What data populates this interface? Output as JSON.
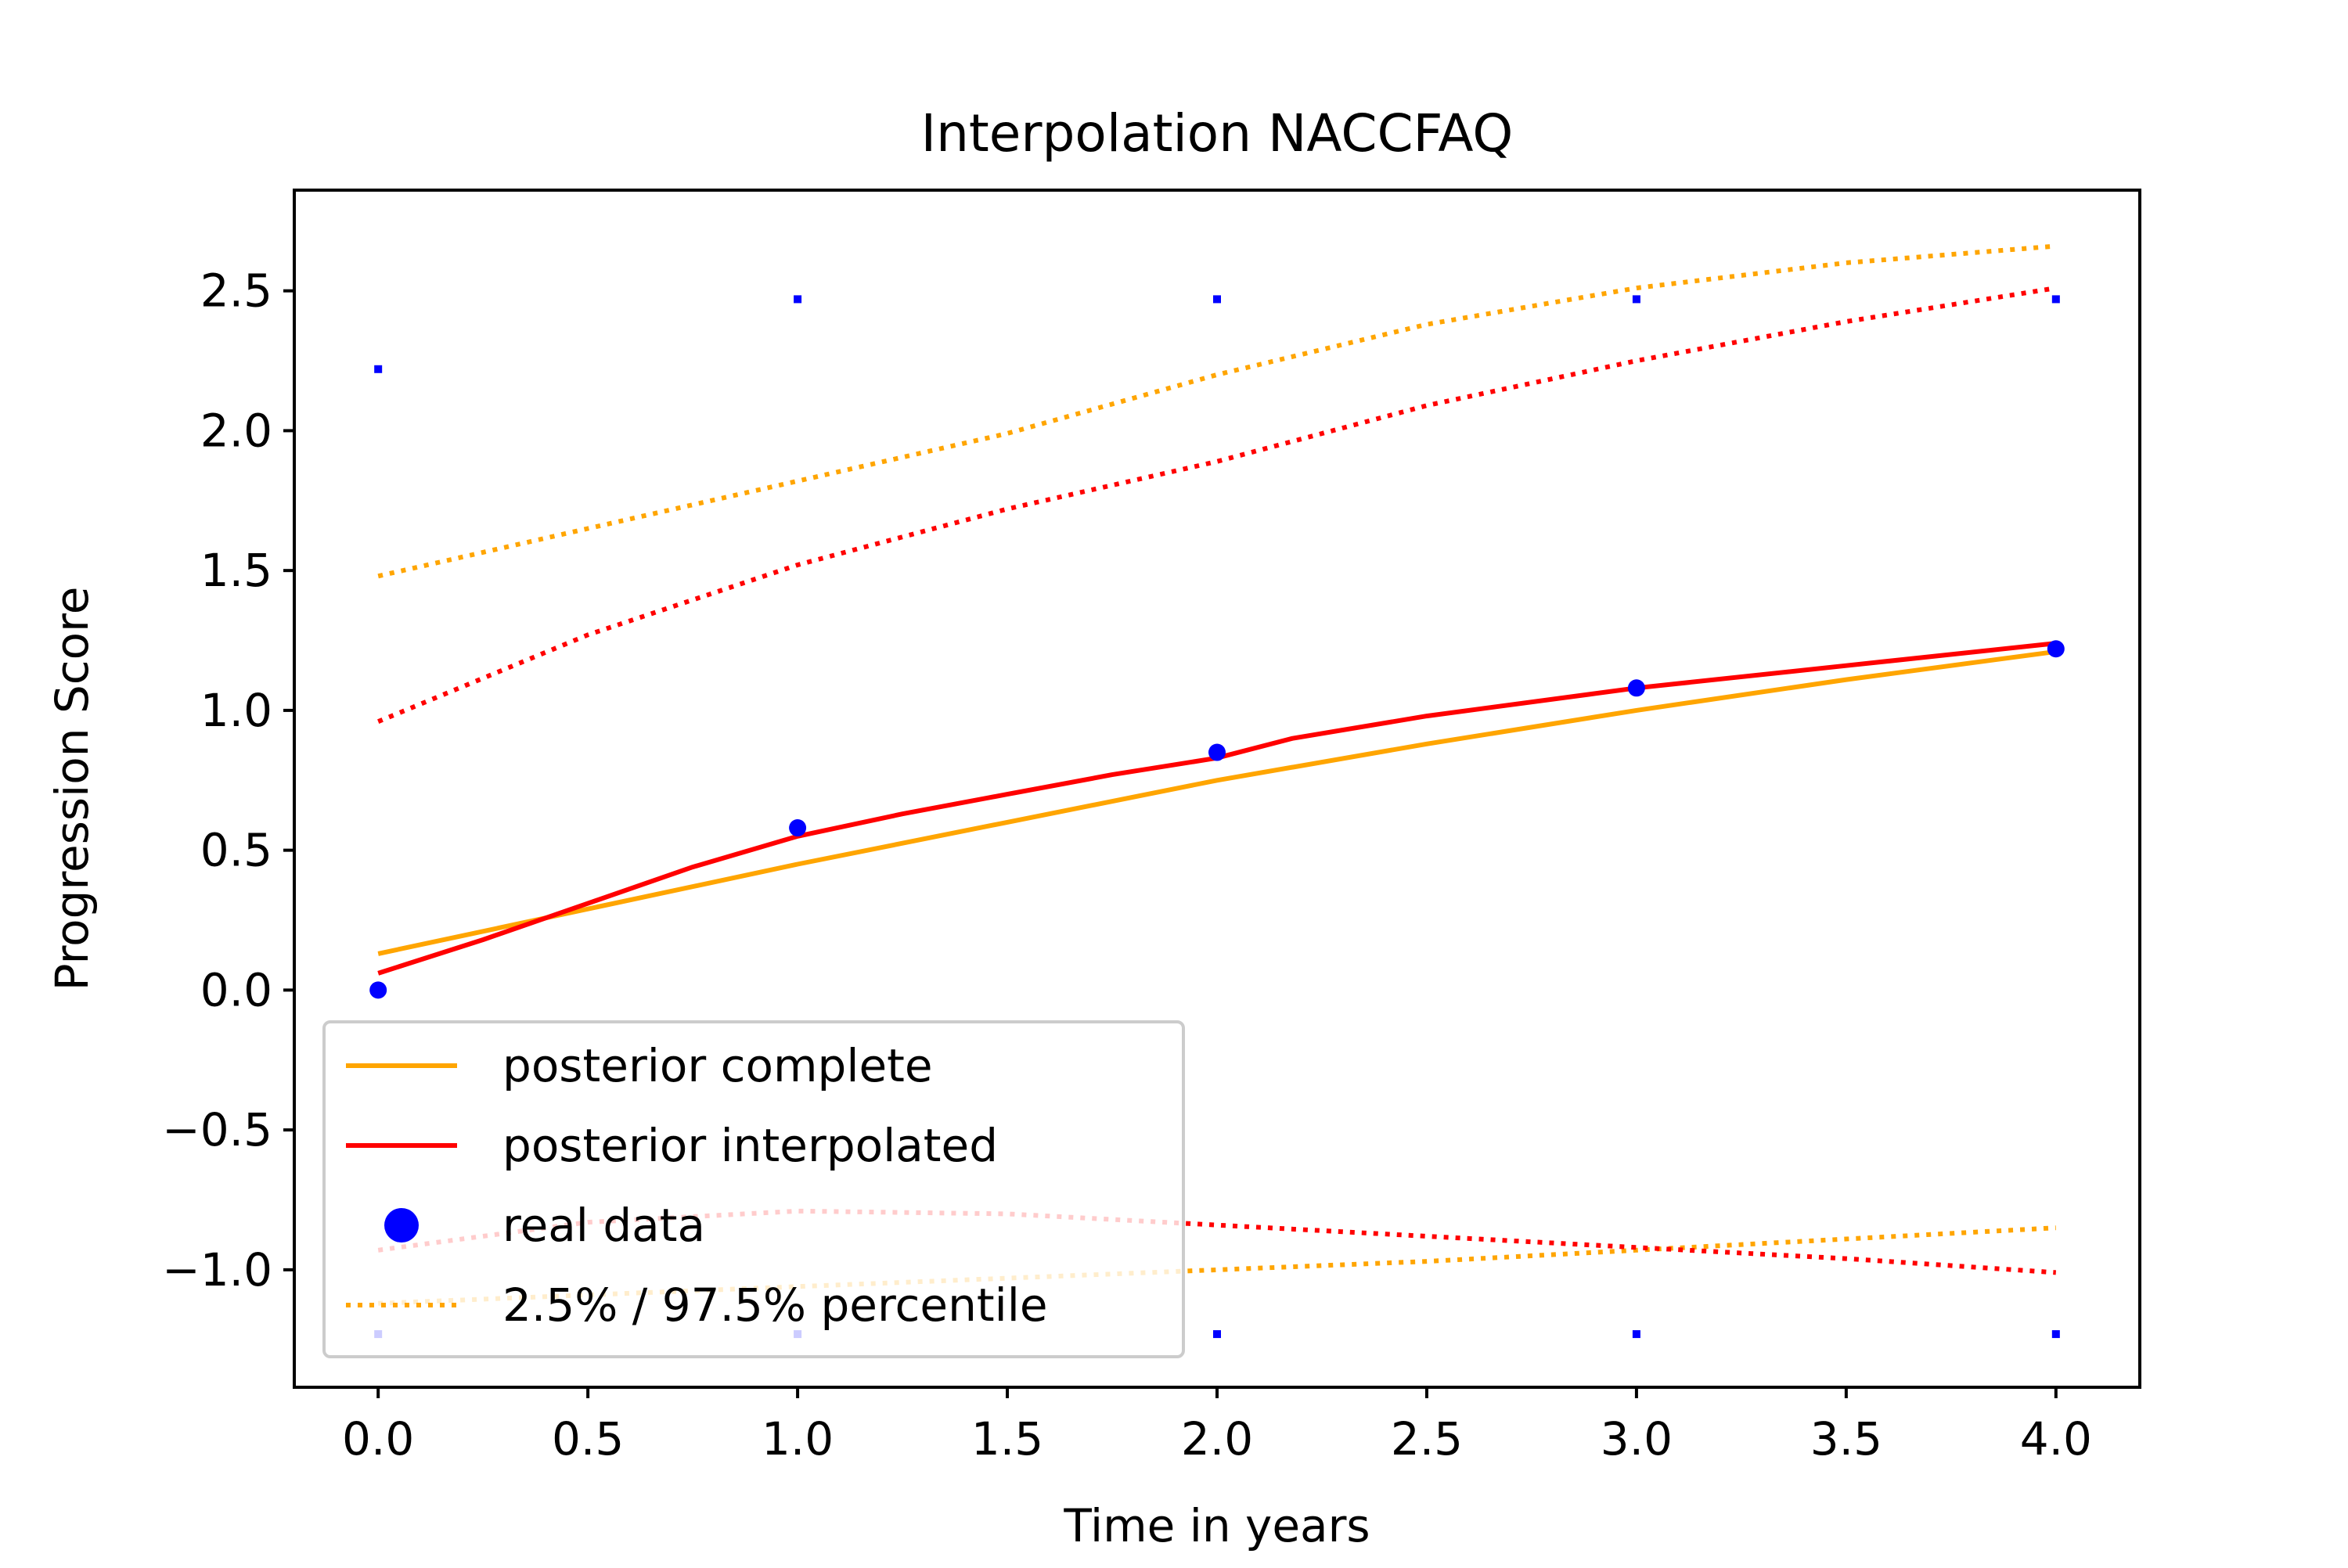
{
  "chart_data": {
    "type": "line",
    "title": "Interpolation NACCFAQ",
    "xlabel": "Time in years",
    "ylabel": "Progression Score",
    "xlim": [
      -0.2,
      4.2
    ],
    "ylim": [
      -1.42,
      2.86
    ],
    "xticks": [
      0.0,
      0.5,
      1.0,
      1.5,
      2.0,
      2.5,
      3.0,
      3.5,
      4.0
    ],
    "xtick_labels": [
      "0.0",
      "0.5",
      "1.0",
      "1.5",
      "2.0",
      "2.5",
      "3.0",
      "3.5",
      "4.0"
    ],
    "yticks": [
      -1.0,
      -0.5,
      0.0,
      0.5,
      1.0,
      1.5,
      2.0,
      2.5
    ],
    "ytick_labels": [
      "−1.0",
      "−0.5",
      "0.0",
      "0.5",
      "1.0",
      "1.5",
      "2.0",
      "2.5"
    ],
    "grid": false,
    "legend_position": "lower-left",
    "series": [
      {
        "name": "posterior complete",
        "style": "solid",
        "color": "#FFA500",
        "x": [
          0,
          0.5,
          1.0,
          1.5,
          2.0,
          2.5,
          3.0,
          3.5,
          4.0
        ],
        "y": [
          0.13,
          0.29,
          0.45,
          0.6,
          0.75,
          0.88,
          1.0,
          1.11,
          1.21
        ]
      },
      {
        "name": "posterior interpolated",
        "style": "solid",
        "color": "#FF0000",
        "x": [
          0,
          0.25,
          0.5,
          0.75,
          1.0,
          1.25,
          1.5,
          1.75,
          2.0,
          2.18,
          2.5,
          3.0,
          3.5,
          4.0
        ],
        "y": [
          0.06,
          0.18,
          0.31,
          0.44,
          0.55,
          0.63,
          0.7,
          0.77,
          0.83,
          0.9,
          0.98,
          1.08,
          1.16,
          1.24
        ]
      },
      {
        "name": "real data",
        "style": "markers",
        "color": "#0000FF",
        "x": [
          0,
          1,
          2,
          3,
          4
        ],
        "y": [
          0.0,
          0.58,
          0.85,
          1.08,
          1.22
        ]
      },
      {
        "name": "2.5% / 97.5% percentile",
        "style": "dotted",
        "color": "#FFA500",
        "x": [
          0,
          0.5,
          1.0,
          1.5,
          2.0,
          2.5,
          3.0,
          3.5,
          4.0
        ],
        "y": [
          1.48,
          1.65,
          1.82,
          1.99,
          2.2,
          2.38,
          2.51,
          2.6,
          2.66
        ]
      },
      {
        "style": "dotted",
        "color": "#FFA500",
        "x": [
          0,
          0.5,
          1.0,
          1.5,
          2.0,
          2.5,
          3.0,
          3.5,
          4.0
        ],
        "y": [
          -1.12,
          -1.09,
          -1.06,
          -1.03,
          -1.0,
          -0.97,
          -0.93,
          -0.89,
          -0.85
        ]
      },
      {
        "style": "dotted",
        "color": "#FF0000",
        "x": [
          0,
          0.5,
          1.0,
          1.5,
          2.0,
          2.5,
          3.0,
          3.5,
          4.0
        ],
        "y": [
          0.96,
          1.27,
          1.52,
          1.72,
          1.89,
          2.09,
          2.25,
          2.39,
          2.51
        ]
      },
      {
        "style": "dotted",
        "color": "#FF0000",
        "x": [
          0,
          0.5,
          1.0,
          1.5,
          2.0,
          2.5,
          3.0,
          3.5,
          4.0
        ],
        "y": [
          -0.93,
          -0.83,
          -0.79,
          -0.8,
          -0.84,
          -0.88,
          -0.92,
          -0.96,
          -1.01
        ]
      },
      {
        "style": "small-markers",
        "color": "#0000FF",
        "x": [
          0,
          1,
          2,
          3,
          4,
          0,
          1,
          2,
          3,
          4
        ],
        "y": [
          2.22,
          2.47,
          2.47,
          2.47,
          2.47,
          -1.23,
          -1.23,
          -1.23,
          -1.23,
          -1.23
        ]
      }
    ],
    "legend": [
      {
        "label": "posterior complete",
        "kind": "solid",
        "color": "#FFA500"
      },
      {
        "label": "posterior interpolated",
        "kind": "solid",
        "color": "#FF0000"
      },
      {
        "label": "real data",
        "kind": "marker",
        "color": "#0000FF"
      },
      {
        "label": "2.5% / 97.5% percentile",
        "kind": "dotted",
        "color": "#FFA500"
      }
    ]
  }
}
